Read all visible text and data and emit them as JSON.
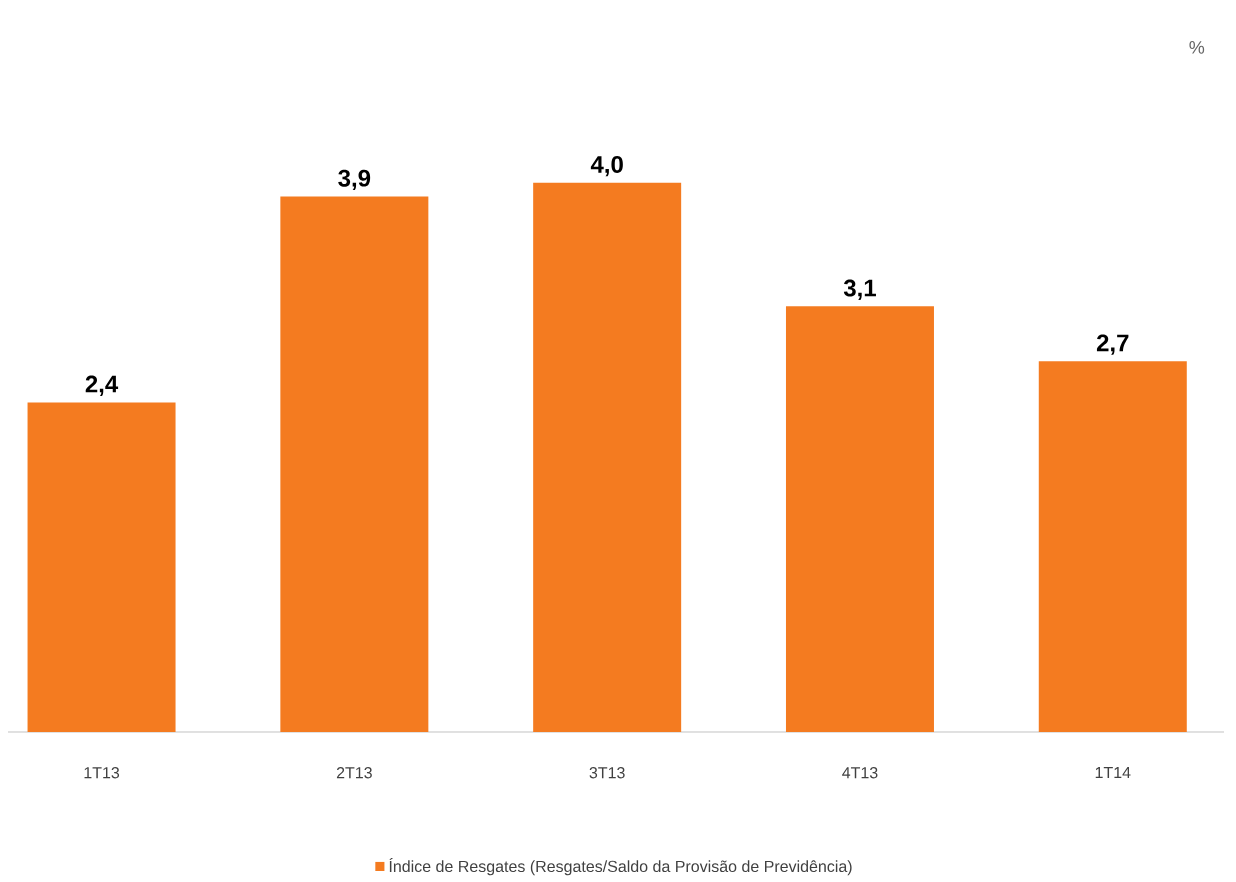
{
  "chart_data": {
    "type": "bar",
    "annotations": [
      "%"
    ],
    "categories": [
      "1T13",
      "2T13",
      "3T13",
      "4T13",
      "1T14"
    ],
    "series": [
      {
        "name": "Índice de Resgates (Resgates/Saldo da Provisão de Previdência)",
        "color": "#f47b20",
        "values": [
          2.4,
          3.9,
          4.0,
          3.1,
          2.7
        ],
        "value_labels": [
          "2,4",
          "3,9",
          "4,0",
          "3,1",
          "2,7"
        ]
      }
    ],
    "legend": "bottom"
  }
}
